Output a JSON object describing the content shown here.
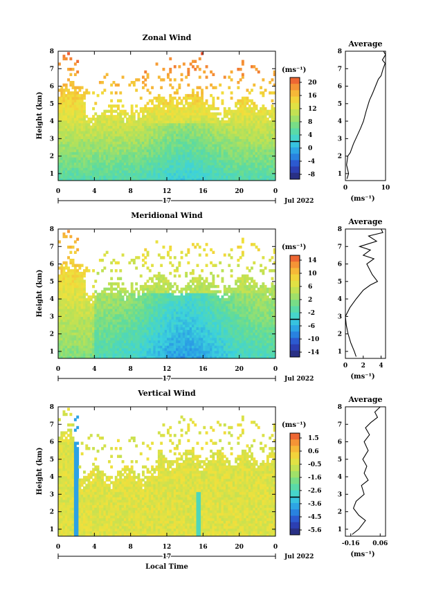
{
  "chart_data": [
    {
      "type": "heatmap",
      "title": "Zonal Wind",
      "ylabel": "Height (km)",
      "ylim": [
        0.6,
        8
      ],
      "xlim": [
        0,
        24
      ],
      "x_ticks": [
        "0",
        "4",
        "8",
        "12",
        "16",
        "20",
        "0"
      ],
      "y_ticks": [
        "1",
        "2",
        "3",
        "4",
        "5",
        "6",
        "7",
        "8"
      ],
      "day_label": "17",
      "month_label": "Jul 2022",
      "colorbar": {
        "unit": "(ms⁻¹)",
        "ticks": [
          "20",
          "16",
          "12",
          "8",
          "4",
          "0",
          "-4",
          "-8"
        ],
        "range": [
          -10,
          22
        ]
      },
      "average_profile": {
        "title": "Average",
        "xlabel": "(ms⁻¹)",
        "x_ticks": [
          "0",
          "10"
        ],
        "xlim": [
          0,
          10
        ],
        "points": [
          [
            0.4,
            0.7
          ],
          [
            0.8,
            1.0
          ],
          [
            0.3,
            1.5
          ],
          [
            0.6,
            2.0
          ],
          [
            1.2,
            2.2
          ],
          [
            2.0,
            2.7
          ],
          [
            3.0,
            3.2
          ],
          [
            3.8,
            3.6
          ],
          [
            4.5,
            4.0
          ],
          [
            5.2,
            4.6
          ],
          [
            6.0,
            5.2
          ],
          [
            6.8,
            5.6
          ],
          [
            7.5,
            6.0
          ],
          [
            8.2,
            6.4
          ],
          [
            8.9,
            6.6
          ],
          [
            9.4,
            7.0
          ],
          [
            9.9,
            7.3
          ],
          [
            9.2,
            7.5
          ],
          [
            10.0,
            7.8
          ],
          [
            9.5,
            8.0
          ]
        ]
      }
    },
    {
      "type": "heatmap",
      "title": "Meridional Wind",
      "ylabel": "Height (km)",
      "ylim": [
        0.6,
        8
      ],
      "xlim": [
        0,
        24
      ],
      "x_ticks": [
        "0",
        "4",
        "8",
        "12",
        "16",
        "20",
        "0"
      ],
      "y_ticks": [
        "1",
        "2",
        "3",
        "4",
        "5",
        "6",
        "7",
        "8"
      ],
      "day_label": "17",
      "month_label": "Jul 2022",
      "colorbar": {
        "unit": "(ms⁻¹)",
        "ticks": [
          "14",
          "10",
          "6",
          "2",
          "-2",
          "-6",
          "-10",
          "-14"
        ],
        "range": [
          -16,
          16
        ]
      },
      "average_profile": {
        "title": "Average",
        "xlabel": "(ms⁻¹)",
        "x_ticks": [
          "0",
          "2",
          "4"
        ],
        "xlim": [
          0,
          4.5
        ],
        "points": [
          [
            1.2,
            0.7
          ],
          [
            1.0,
            1.0
          ],
          [
            0.6,
            1.5
          ],
          [
            0.3,
            2.0
          ],
          [
            0.1,
            2.5
          ],
          [
            0.0,
            3.0
          ],
          [
            0.5,
            3.5
          ],
          [
            1.2,
            4.0
          ],
          [
            2.0,
            4.5
          ],
          [
            2.8,
            4.8
          ],
          [
            3.6,
            5.0
          ],
          [
            3.0,
            5.4
          ],
          [
            2.4,
            6.0
          ],
          [
            3.2,
            6.3
          ],
          [
            2.0,
            6.5
          ],
          [
            2.8,
            6.8
          ],
          [
            1.6,
            7.0
          ],
          [
            3.5,
            7.3
          ],
          [
            2.6,
            7.6
          ],
          [
            4.2,
            7.8
          ],
          [
            4.0,
            8.0
          ]
        ]
      }
    },
    {
      "type": "heatmap",
      "title": "Vertical Wind",
      "xlabel": "Local Time",
      "ylabel": "Height (km)",
      "ylim": [
        0.6,
        8
      ],
      "xlim": [
        0,
        24
      ],
      "x_ticks": [
        "0",
        "4",
        "8",
        "12",
        "16",
        "20",
        "0"
      ],
      "y_ticks": [
        "1",
        "2",
        "3",
        "4",
        "5",
        "6",
        "7",
        "8"
      ],
      "day_label": "17",
      "month_label": "Jul 2022",
      "colorbar": {
        "unit": "(ms⁻¹)",
        "ticks": [
          "1.5",
          "0.6",
          "-0.5",
          "-1.6",
          "-2.6",
          "-3.6",
          "-4.5",
          "-5.6"
        ],
        "range": [
          -6,
          2
        ]
      },
      "average_profile": {
        "title": "Average",
        "xlabel": "(ms⁻¹)",
        "x_ticks": [
          "-0.16",
          "0.06"
        ],
        "xlim": [
          -0.2,
          0.1
        ],
        "points": [
          [
            -0.15,
            0.7
          ],
          [
            -0.1,
            1.0
          ],
          [
            -0.07,
            1.3
          ],
          [
            -0.05,
            1.5
          ],
          [
            -0.1,
            1.8
          ],
          [
            -0.14,
            2.2
          ],
          [
            -0.12,
            2.6
          ],
          [
            -0.06,
            3.0
          ],
          [
            -0.08,
            3.5
          ],
          [
            -0.03,
            3.8
          ],
          [
            -0.06,
            4.2
          ],
          [
            -0.04,
            4.6
          ],
          [
            -0.07,
            5.0
          ],
          [
            -0.03,
            5.5
          ],
          [
            -0.06,
            6.0
          ],
          [
            -0.02,
            6.4
          ],
          [
            -0.05,
            6.8
          ],
          [
            -0.01,
            7.1
          ],
          [
            0.04,
            7.4
          ],
          [
            0.02,
            7.7
          ],
          [
            0.06,
            8.0
          ]
        ]
      }
    }
  ]
}
